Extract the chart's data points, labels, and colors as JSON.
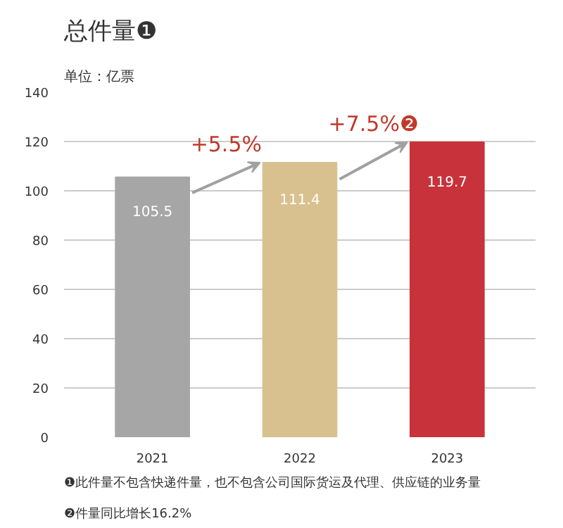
{
  "chart_data": {
    "type": "bar",
    "title": "总件量❶",
    "ylabel": "单位：亿票",
    "categories": [
      "2021",
      "2022",
      "2023"
    ],
    "values": [
      105.5,
      111.4,
      119.7
    ],
    "colors": [
      "#a6a6a6",
      "#d8c18f",
      "#c8323a"
    ],
    "ylim": [
      0,
      140
    ],
    "yticks": [
      0,
      20,
      40,
      60,
      80,
      100,
      120,
      140
    ],
    "grid": "y",
    "data_labels": true,
    "annotations": [
      "+5.5%",
      "+7.5%❷",
      "❶此件量不包含快递件量，也不包含公司国际货运及代理、供应链的业务量",
      "❷件量同比增长16.2%"
    ]
  }
}
